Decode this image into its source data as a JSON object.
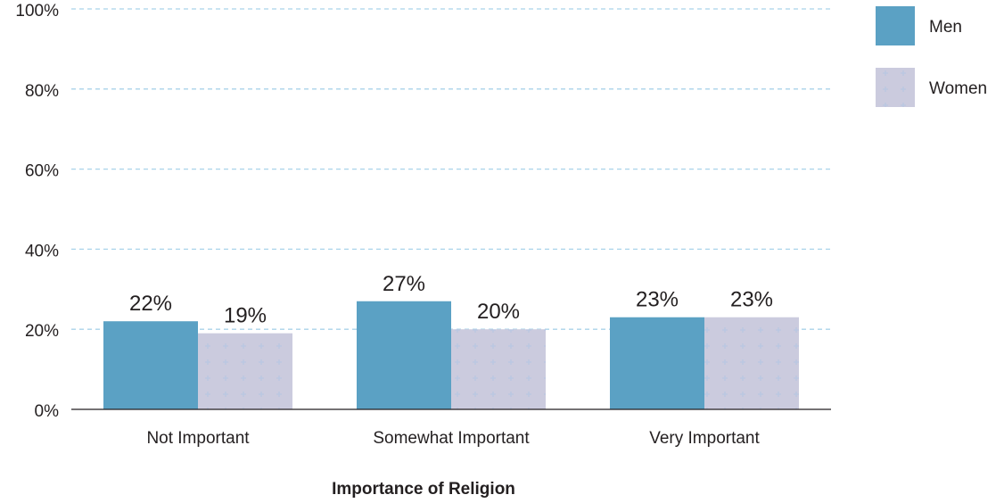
{
  "chart_data": {
    "type": "bar",
    "title": "",
    "xlabel": "Importance of Religion",
    "ylabel": "",
    "categories": [
      "Not Important",
      "Somewhat Important",
      "Very Important"
    ],
    "series": [
      {
        "name": "Men",
        "values": [
          22,
          27,
          23
        ],
        "labels": [
          "22%",
          "27%",
          "23%"
        ]
      },
      {
        "name": "Women",
        "values": [
          19,
          20,
          23
        ],
        "labels": [
          "19%",
          "20%",
          "23%"
        ]
      }
    ],
    "ylim": [
      0,
      100
    ],
    "yticks": [
      0,
      20,
      40,
      60,
      80,
      100
    ],
    "ytick_labels": [
      "0%",
      "20%",
      "40%",
      "60%",
      "80%",
      "100%"
    ],
    "grid": true,
    "legend_position": "top-right",
    "colors": {
      "men": "#5ba1c4",
      "women": "#cbcbde",
      "women_pattern": "#b9c7e2",
      "grid": "#a9d3ea",
      "axis": "#231f20",
      "text": "#231f20"
    }
  }
}
